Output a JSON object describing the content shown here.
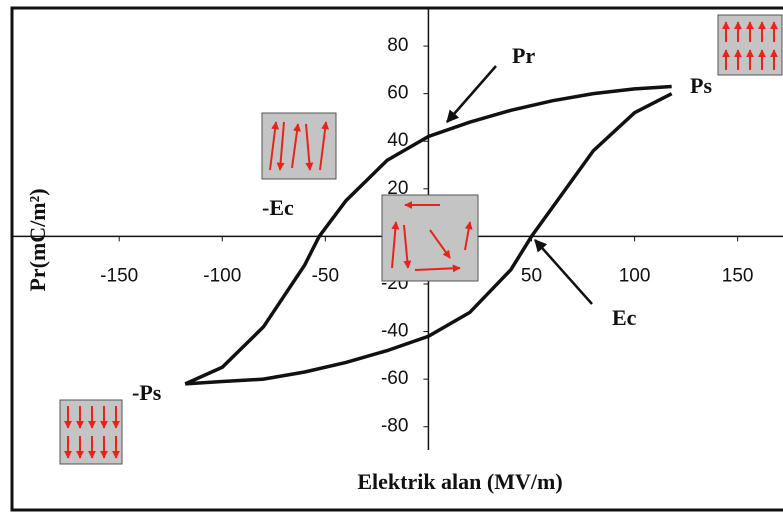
{
  "chart_data": {
    "type": "line",
    "x_label": "Elektrik alan (MV/m)",
    "y_label": "Pr(mC/m²)",
    "xlim": [
      -202,
      172
    ],
    "ylim": [
      -115,
      96
    ],
    "xticks": [
      -150,
      -100,
      -50,
      50,
      100,
      150
    ],
    "yticks": [
      80,
      60,
      40,
      20,
      -20,
      -40,
      -60,
      -80
    ],
    "series": [
      {
        "color": "#111111",
        "x": [
          -118,
          -100,
          -80,
          -60,
          -53,
          -40,
          -20,
          0,
          20,
          40,
          60,
          80,
          100,
          118
        ],
        "values": [
          -62,
          -55,
          -38,
          -12,
          0,
          15,
          32,
          42,
          48,
          53,
          57,
          60,
          62,
          63
        ]
      },
      {
        "color": "#111111",
        "x": [
          118,
          100,
          80,
          60,
          50,
          40,
          20,
          0,
          -20,
          -40,
          -60,
          -80,
          -100,
          -118
        ],
        "values": [
          60,
          52,
          36,
          12,
          0,
          -14,
          -32,
          -42,
          -48,
          -53,
          -57,
          -60,
          -61,
          -62
        ]
      }
    ],
    "annotations": [
      "Pr",
      "Ps",
      "-Ps",
      "Ec",
      "-Ec"
    ]
  }
}
